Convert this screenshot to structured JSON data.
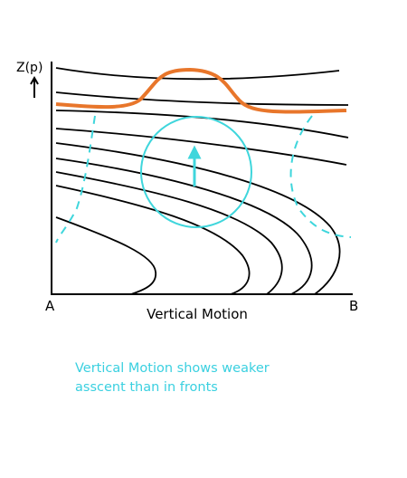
{
  "axis": {
    "y_label": "Z(p)",
    "x_label": "Vertical Motion",
    "left_end": "A",
    "right_end": "B"
  },
  "caption": {
    "lines": [
      "Vertical Motion shows weaker",
      "asscent than in fronts"
    ]
  }
}
